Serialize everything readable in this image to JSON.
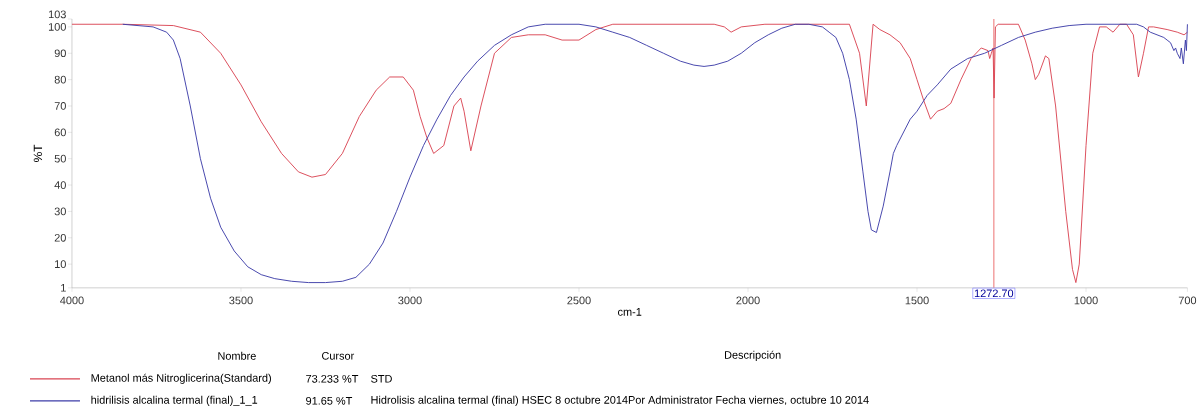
{
  "chart_data": {
    "type": "line",
    "xlabel": "cm-1",
    "ylabel": "%T",
    "xlim": [
      4000,
      700
    ],
    "ylim": [
      1,
      103
    ],
    "xticks": [
      4000,
      3500,
      3000,
      2500,
      2000,
      1500,
      1000,
      700
    ],
    "yticks": [
      1,
      10,
      20,
      30,
      40,
      50,
      60,
      70,
      80,
      90,
      100,
      103
    ],
    "grid": false,
    "legend": "bottom",
    "marker": "none",
    "line_style": "solid",
    "series": [
      {
        "name": "Metanol más Nitroglicerina(Standard)",
        "color": "#d94452",
        "x": [
          4000,
          3850,
          3700,
          3620,
          3560,
          3500,
          3440,
          3380,
          3330,
          3290,
          3250,
          3200,
          3150,
          3100,
          3060,
          3020,
          2990,
          2970,
          2950,
          2930,
          2900,
          2870,
          2850,
          2840,
          2820,
          2790,
          2750,
          2700,
          2650,
          2600,
          2550,
          2500,
          2450,
          2400,
          2300,
          2200,
          2100,
          2070,
          2050,
          2020,
          1950,
          1800,
          1700,
          1670,
          1650,
          1630,
          1610,
          1580,
          1550,
          1520,
          1500,
          1480,
          1460,
          1440,
          1420,
          1400,
          1370,
          1340,
          1310,
          1290,
          1285,
          1280,
          1275,
          1272,
          1268,
          1260,
          1230,
          1200,
          1180,
          1160,
          1150,
          1140,
          1120,
          1110,
          1090,
          1060,
          1040,
          1030,
          1020,
          1000,
          980,
          960,
          940,
          920,
          900,
          880,
          860,
          845,
          830,
          815,
          800,
          760,
          730,
          710,
          700
        ],
        "values": [
          101,
          101,
          100.5,
          98,
          90,
          78,
          64,
          52,
          45,
          43,
          44,
          52,
          66,
          76,
          81,
          81,
          76,
          66,
          58,
          52,
          55,
          70,
          73,
          68,
          53,
          70,
          90,
          96,
          97,
          97,
          95,
          95,
          99,
          101,
          101,
          101,
          101,
          100,
          98,
          100,
          101,
          101,
          101,
          90,
          70,
          101,
          99,
          97,
          94,
          88,
          80,
          72,
          65,
          68,
          69,
          71,
          80,
          88,
          92,
          91,
          88,
          90,
          92,
          73,
          100,
          101,
          101,
          101,
          95,
          86,
          80,
          82,
          89,
          88,
          70,
          30,
          8,
          3,
          10,
          55,
          90,
          100,
          100,
          98,
          101,
          101,
          97,
          81,
          90,
          100,
          100,
          99,
          98,
          97,
          98
        ]
      },
      {
        "name": "hidrilisis alcalina termal (final)_1_1",
        "color": "#3c3ca8",
        "x": [
          3850,
          3760,
          3720,
          3700,
          3680,
          3650,
          3620,
          3590,
          3560,
          3520,
          3480,
          3440,
          3400,
          3350,
          3300,
          3250,
          3200,
          3160,
          3120,
          3080,
          3040,
          3000,
          2960,
          2920,
          2880,
          2840,
          2800,
          2750,
          2700,
          2650,
          2600,
          2550,
          2500,
          2450,
          2400,
          2350,
          2300,
          2250,
          2200,
          2160,
          2130,
          2100,
          2060,
          2020,
          1980,
          1940,
          1900,
          1860,
          1820,
          1780,
          1760,
          1740,
          1720,
          1700,
          1680,
          1660,
          1645,
          1635,
          1620,
          1600,
          1580,
          1570,
          1560,
          1540,
          1520,
          1500,
          1470,
          1440,
          1400,
          1350,
          1300,
          1250,
          1200,
          1150,
          1100,
          1050,
          1000,
          950,
          900,
          870,
          850,
          830,
          810,
          790,
          770,
          760,
          750,
          740,
          735,
          730,
          722,
          718,
          712,
          706,
          703,
          700
        ],
        "values": [
          101,
          100,
          98,
          95,
          88,
          70,
          50,
          35,
          24,
          15,
          9,
          6,
          4.5,
          3.5,
          3,
          3,
          3.5,
          5,
          10,
          18,
          30,
          43,
          55,
          65,
          74,
          81,
          87,
          93,
          97,
          100,
          101,
          101,
          101,
          100,
          98,
          96,
          93,
          90,
          87,
          85.5,
          85,
          85.5,
          87,
          90,
          94,
          97,
          99.5,
          101,
          101,
          100,
          98,
          96,
          90,
          80,
          65,
          45,
          30,
          23,
          22,
          32,
          45,
          52,
          55,
          60,
          65,
          68,
          74,
          78,
          84,
          88,
          90,
          93,
          96,
          98,
          99.5,
          100.5,
          101,
          101,
          101,
          101,
          101,
          100,
          98,
          97,
          96,
          95,
          94,
          91,
          92,
          90,
          88,
          92,
          86,
          95,
          91,
          101
        ]
      }
    ],
    "ref_lines": [
      {
        "axis": "x",
        "value": 1272.7,
        "label": "1272.70",
        "color": "#f08a8a"
      }
    ],
    "annotations": [
      "Nombre",
      "Cursor",
      "Descripción",
      "73.233 %T",
      "STD",
      "91.65 %T",
      "Hidrolisis alcalina termal (final) HSEC 8 octubre 2014Por Administrator Fecha viernes, octubre 10 2014"
    ]
  }
}
